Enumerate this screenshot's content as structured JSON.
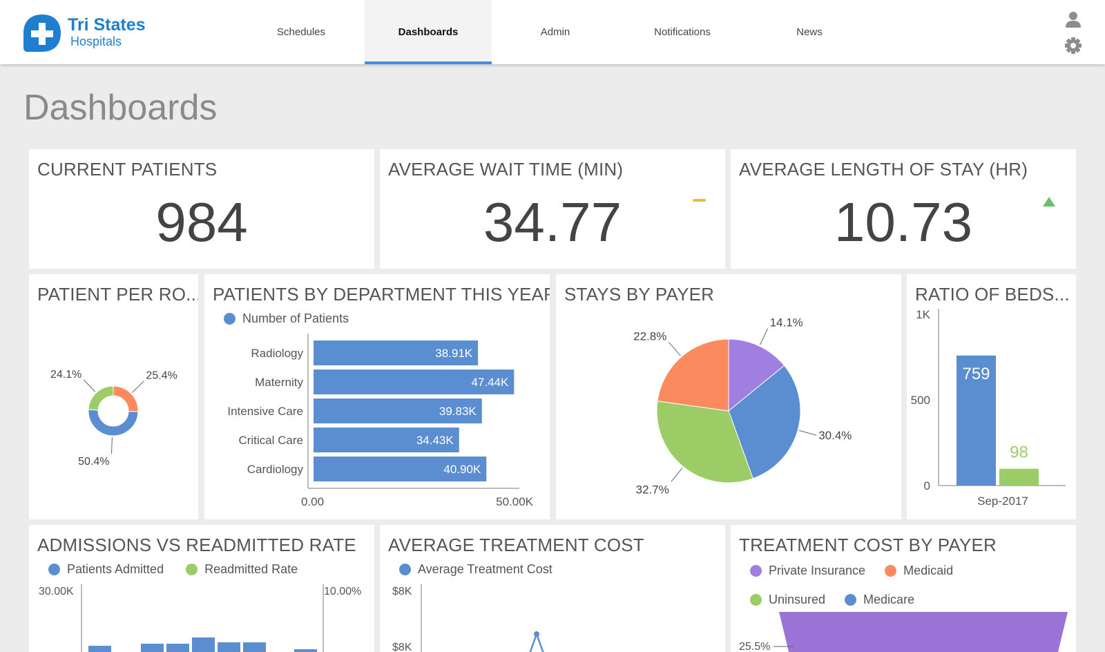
{
  "brand": {
    "line1": "Tri States",
    "line2": "Hospitals"
  },
  "nav": {
    "tabs": [
      {
        "label": "Schedules"
      },
      {
        "label": "Dashboards"
      },
      {
        "label": "Admin"
      },
      {
        "label": "Notifications"
      },
      {
        "label": "News"
      }
    ],
    "active": "Dashboards"
  },
  "page": {
    "title": "Dashboards"
  },
  "colors": {
    "blue": "#5b8ed0",
    "green": "#9ccc65",
    "orange": "#fc8a5f",
    "purple": "#a07fe0",
    "yellow": "#f2bd2c",
    "up": "#6cc06c",
    "accent": "#3f8fe3"
  },
  "kpis": {
    "current_patients": {
      "title": "CURRENT PATIENTS",
      "value": "984"
    },
    "wait_time": {
      "title": "AVERAGE WAIT TIME (MIN)",
      "value": "34.77",
      "indicator": "neutral"
    },
    "length_of_stay": {
      "title": "AVERAGE LENGTH OF STAY (HR)",
      "value": "10.73",
      "indicator": "up"
    }
  },
  "cards": {
    "patient_per_room": {
      "title": "PATIENT PER RO..."
    },
    "by_department": {
      "title": "PATIENTS BY DEPARTMENT THIS YEAR"
    },
    "stays_by_payer": {
      "title": "STAYS BY PAYER"
    },
    "ratio_of_beds": {
      "title": "RATIO OF BEDS..."
    },
    "admissions": {
      "title": "ADMISSIONS VS READMITTED RATE"
    },
    "treatment_cost": {
      "title": "AVERAGE TREATMENT COST"
    },
    "cost_by_payer": {
      "title": "TREATMENT COST BY PAYER"
    }
  },
  "chart_data": [
    {
      "id": "patient_per_room",
      "type": "pie",
      "donut": true,
      "slices": [
        {
          "value": 25.4,
          "label": "25.4%",
          "color": "#fc8a5f"
        },
        {
          "value": 50.4,
          "label": "50.4%",
          "color": "#5b8ed0"
        },
        {
          "value": 24.1,
          "label": "24.1%",
          "color": "#9ccc65"
        }
      ]
    },
    {
      "id": "by_department",
      "type": "bar",
      "orientation": "horizontal",
      "legend": [
        "Number of Patients"
      ],
      "categories": [
        "Radiology",
        "Maternity",
        "Intensive Care",
        "Critical Care",
        "Cardiology"
      ],
      "values": [
        38910,
        47440,
        39830,
        34430,
        40900
      ],
      "data_labels": [
        "38.91K",
        "47.44K",
        "39.83K",
        "34.43K",
        "40.90K"
      ],
      "xlim": [
        0,
        50000
      ],
      "x_ticks": [
        "0.00",
        "50.00K"
      ]
    },
    {
      "id": "stays_by_payer",
      "type": "pie",
      "slices": [
        {
          "value": 14.1,
          "label": "14.1%",
          "color": "#a07fe0"
        },
        {
          "value": 30.4,
          "label": "30.4%",
          "color": "#5b8ed0"
        },
        {
          "value": 32.7,
          "label": "32.7%",
          "color": "#9ccc65"
        },
        {
          "value": 22.8,
          "label": "22.8%",
          "color": "#fc8a5f"
        }
      ]
    },
    {
      "id": "ratio_of_beds",
      "type": "bar",
      "categories": [
        "Sep-2017"
      ],
      "series": [
        {
          "values": [
            759
          ],
          "label": "759",
          "color": "#5b8ed0"
        },
        {
          "values": [
            98
          ],
          "label": "98",
          "color": "#9ccc65"
        }
      ],
      "ylim": [
        0,
        1000
      ],
      "y_ticks": [
        "0",
        "500",
        "1K"
      ]
    },
    {
      "id": "admissions",
      "type": "bar",
      "legend": [
        "Patients Admitted",
        "Readmitted Rate"
      ],
      "y_left_top": "30.00K",
      "y_right_top": "10.00%",
      "partial_visible": true
    },
    {
      "id": "treatment_cost",
      "type": "line",
      "legend": [
        "Average Treatment Cost"
      ],
      "y_ticks": [
        "$8K",
        "$8K"
      ],
      "partial_visible": true
    },
    {
      "id": "cost_by_payer",
      "type": "area",
      "legend": [
        "Private Insurance",
        "Medicaid",
        "Uninsured",
        "Medicare"
      ],
      "first_label": "25.5%",
      "partial_visible": true
    }
  ]
}
